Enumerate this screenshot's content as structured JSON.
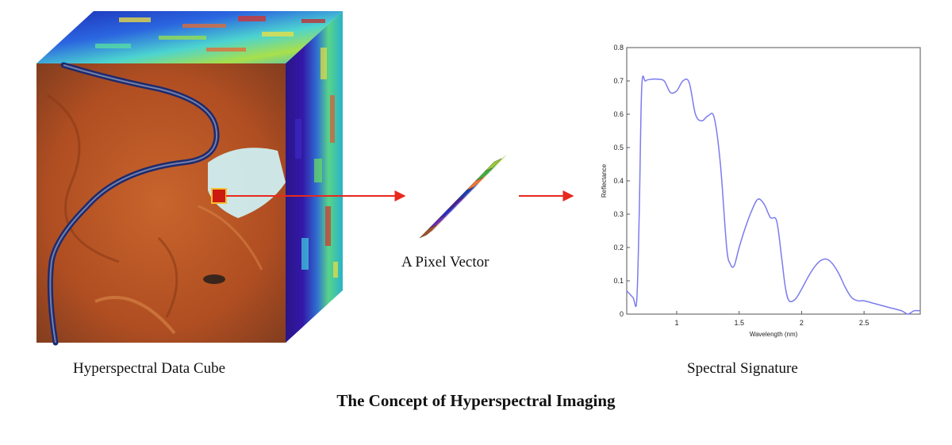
{
  "labels": {
    "cube": "Hyperspectral Data Cube",
    "vector": "A Pixel Vector",
    "signature": "Spectral Signature",
    "title": "The Concept of Hyperspectral Imaging"
  },
  "colors": {
    "arrow": "#e8281e",
    "pixel_marker": "#cc1a10",
    "curve": "#7b7bee",
    "terrain": "#b5562a",
    "river": "#1e2a6e",
    "cube_side": "#2f1a8e",
    "cube_top": "#2a55d0"
  },
  "pixel_vector_bands": [
    "#9acd32",
    "#3cb43c",
    "#f07830",
    "#1a3cb4",
    "#4a1ea0",
    "#2a2ac8",
    "#6a2ab4",
    "#a05028"
  ],
  "chart_data": {
    "type": "line",
    "xlabel": "Wavelength (nm)",
    "ylabel": "Reflectance",
    "xlim": [
      0.6,
      2.95
    ],
    "ylim": [
      0,
      0.8
    ],
    "xticks": [
      1,
      1.5,
      2,
      2.5
    ],
    "yticks": [
      0,
      0.1,
      0.2,
      0.3,
      0.4,
      0.5,
      0.6,
      0.7,
      0.8
    ],
    "series": [
      {
        "x": [
          0.6,
          0.65,
          0.68,
          0.7,
          0.72,
          0.75,
          0.8,
          0.85,
          0.9,
          0.95,
          1.0,
          1.05,
          1.1,
          1.15,
          1.2,
          1.25,
          1.3,
          1.35,
          1.4,
          1.43,
          1.46,
          1.5,
          1.55,
          1.6,
          1.65,
          1.7,
          1.75,
          1.8,
          1.84,
          1.87,
          1.9,
          1.95,
          2.0,
          2.05,
          2.1,
          2.15,
          2.2,
          2.25,
          2.3,
          2.35,
          2.4,
          2.45,
          2.5,
          2.6,
          2.7,
          2.8,
          2.85,
          2.9,
          2.95
        ],
        "y": [
          0.07,
          0.05,
          0.04,
          0.3,
          0.68,
          0.7,
          0.705,
          0.705,
          0.7,
          0.665,
          0.67,
          0.7,
          0.695,
          0.6,
          0.58,
          0.595,
          0.59,
          0.45,
          0.2,
          0.15,
          0.145,
          0.2,
          0.26,
          0.31,
          0.345,
          0.33,
          0.29,
          0.28,
          0.17,
          0.08,
          0.04,
          0.045,
          0.075,
          0.11,
          0.14,
          0.16,
          0.165,
          0.15,
          0.12,
          0.08,
          0.05,
          0.04,
          0.04,
          0.03,
          0.02,
          0.01,
          0.0,
          0.01,
          0.01
        ]
      }
    ]
  }
}
